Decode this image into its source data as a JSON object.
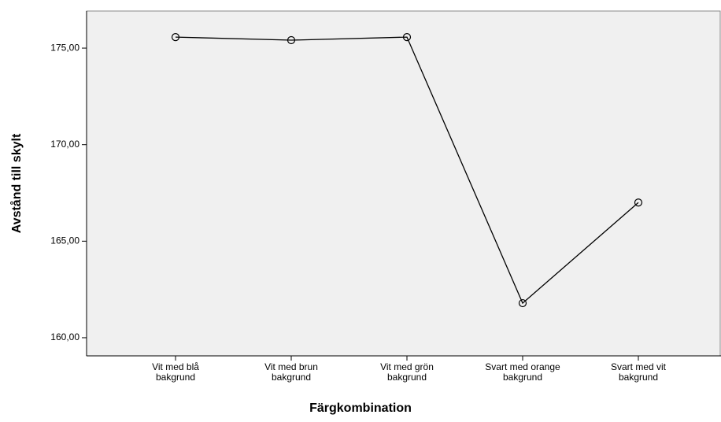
{
  "chart_data": {
    "type": "line",
    "x_label": "Färgkombination",
    "y_label": "Avstånd till skylt",
    "categories": [
      "Vit med blå\nbakgrund",
      "Vit med brun\nbakgrund",
      "Vit med grön\nbakgrund",
      "Svart med orange\nbakgrund",
      "Svart med vit\nbakgrund"
    ],
    "values": [
      175.57,
      175.41,
      175.57,
      161.79,
      167.0
    ],
    "color": "#000000",
    "ylim": [
      159.06,
      176.92
    ],
    "yticks": [
      {
        "value": 160,
        "label": "160,00"
      },
      {
        "value": 165,
        "label": "165,00"
      },
      {
        "value": 170,
        "label": "170,00"
      },
      {
        "value": 175,
        "label": "175,00"
      }
    ]
  }
}
